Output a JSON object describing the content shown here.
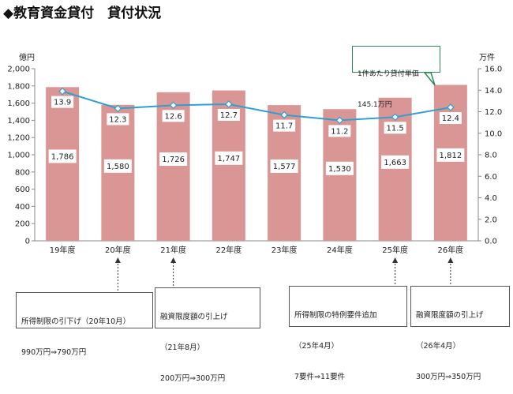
{
  "page": {
    "title": "◆教育資金貸付　貸付状況",
    "left_unit": "億円",
    "right_unit": "万件"
  },
  "callout": {
    "line1": "1件あたり貸付単価",
    "line2": "145.1万円"
  },
  "notes": [
    {
      "line1": "所得制限の引下げ（20年10月）",
      "line2": "990万円⇒790万円",
      "line3": ""
    },
    {
      "line1": "融資限度額の引上げ",
      "line2": "（21年8月）",
      "line3": "200万円⇒300万円"
    },
    {
      "line1": "所得制限の特例要件追加",
      "line2": "（25年4月）",
      "line3": "7要件⇒11要件"
    },
    {
      "line1": "融資限度額の引上げ",
      "line2": "（26年4月）",
      "line3": "300万円⇒350万円"
    }
  ],
  "colors": {
    "bar": "#d99694",
    "line": "#2e9fd4",
    "marker_fill": "#ffffff",
    "callout_border": "#2e8b57",
    "axis": "#888888"
  },
  "chart_data": {
    "type": "bar",
    "categories": [
      "19年度",
      "20年度",
      "21年度",
      "22年度",
      "23年度",
      "24年度",
      "25年度",
      "26年度"
    ],
    "series": [
      {
        "values": [
          1786,
          1580,
          1726,
          1747,
          1577,
          1530,
          1663,
          1812
        ],
        "labels": [
          "1,786",
          "1,580",
          "1,726",
          "1,747",
          "1,577",
          "1,530",
          "1,663",
          "1,812"
        ]
      },
      {
        "values": [
          13.9,
          12.3,
          12.6,
          12.7,
          11.7,
          11.2,
          11.5,
          12.4
        ],
        "labels": [
          "13.9",
          "12.3",
          "12.6",
          "12.7",
          "11.7",
          "11.2",
          "11.5",
          "12.4"
        ]
      }
    ],
    "ylim_left": [
      0,
      2000
    ],
    "ylim_right": [
      0,
      16
    ],
    "left_ticks": [
      "0",
      "200",
      "400",
      "600",
      "800",
      "1,000",
      "1,200",
      "1,400",
      "1,600",
      "1,800",
      "2,000"
    ],
    "right_ticks": [
      "0.0",
      "2.0",
      "4.0",
      "6.0",
      "8.0",
      "10.0",
      "12.0",
      "14.0",
      "16.0"
    ],
    "grid": false
  }
}
